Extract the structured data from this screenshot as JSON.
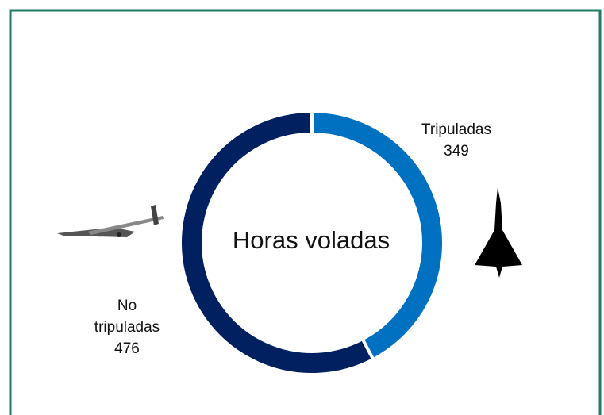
{
  "chart_data": {
    "type": "donut",
    "title": "Horas voladas",
    "categories": [
      "Tripuladas",
      "No tripuladas"
    ],
    "values": [
      349,
      476
    ],
    "colors": [
      "#0070c0",
      "#002060"
    ]
  }
}
